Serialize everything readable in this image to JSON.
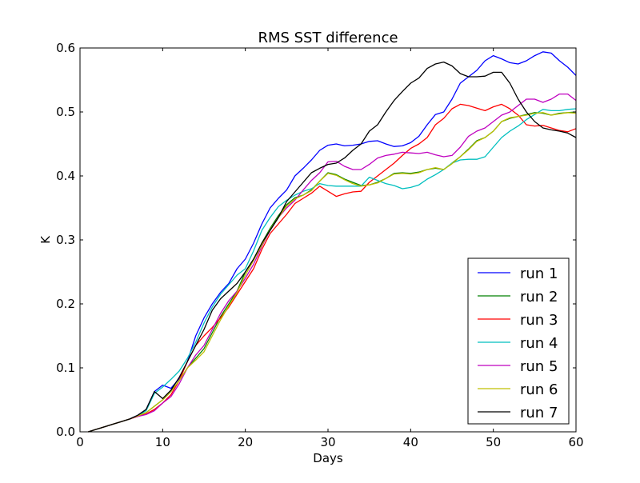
{
  "chart_data": {
    "type": "line",
    "title": "RMS SST difference",
    "xlabel": "Days",
    "ylabel": "K",
    "xlim": [
      0,
      60
    ],
    "ylim": [
      0,
      0.6
    ],
    "xticks": [
      0,
      10,
      20,
      30,
      40,
      50,
      60
    ],
    "yticks": [
      0.0,
      0.1,
      0.2,
      0.3,
      0.4,
      0.5,
      0.6
    ],
    "xtick_labels": [
      "0",
      "10",
      "20",
      "30",
      "40",
      "50",
      "60"
    ],
    "ytick_labels": [
      "0.0",
      "0.1",
      "0.2",
      "0.3",
      "0.4",
      "0.5",
      "0.6"
    ],
    "grid": false,
    "legend_position": "lower-right",
    "x": [
      1,
      2,
      3,
      4,
      5,
      6,
      7,
      8,
      9,
      10,
      11,
      12,
      13,
      14,
      15,
      16,
      17,
      18,
      19,
      20,
      21,
      22,
      23,
      24,
      25,
      26,
      27,
      28,
      29,
      30,
      31,
      32,
      33,
      34,
      35,
      36,
      37,
      38,
      39,
      40,
      41,
      42,
      43,
      44,
      45,
      46,
      47,
      48,
      49,
      50,
      51,
      52,
      53,
      54,
      55,
      56,
      57,
      58,
      59,
      60
    ],
    "series": [
      {
        "name": "run 1",
        "color": "#0000ff",
        "values": [
          0.0,
          0.004,
          0.008,
          0.012,
          0.016,
          0.02,
          0.026,
          0.035,
          0.063,
          0.073,
          0.068,
          0.083,
          0.11,
          0.15,
          0.178,
          0.2,
          0.218,
          0.232,
          0.255,
          0.27,
          0.295,
          0.325,
          0.35,
          0.365,
          0.378,
          0.4,
          0.412,
          0.425,
          0.44,
          0.448,
          0.45,
          0.447,
          0.448,
          0.45,
          0.454,
          0.455,
          0.45,
          0.446,
          0.447,
          0.452,
          0.462,
          0.48,
          0.496,
          0.5,
          0.52,
          0.545,
          0.555,
          0.565,
          0.58,
          0.588,
          0.583,
          0.577,
          0.575,
          0.58,
          0.588,
          0.594,
          0.592,
          0.58,
          0.57,
          0.557
        ]
      },
      {
        "name": "run 2",
        "color": "#008000",
        "values": [
          0.0,
          0.004,
          0.008,
          0.012,
          0.016,
          0.02,
          0.025,
          0.03,
          0.04,
          0.05,
          0.063,
          0.08,
          0.1,
          0.115,
          0.13,
          0.155,
          0.18,
          0.2,
          0.22,
          0.25,
          0.27,
          0.295,
          0.318,
          0.338,
          0.355,
          0.366,
          0.37,
          0.378,
          0.392,
          0.405,
          0.402,
          0.395,
          0.39,
          0.385,
          0.386,
          0.39,
          0.396,
          0.404,
          0.405,
          0.404,
          0.406,
          0.41,
          0.412,
          0.41,
          0.42,
          0.43,
          0.442,
          0.455,
          0.46,
          0.47,
          0.485,
          0.49,
          0.493,
          0.496,
          0.499,
          0.498,
          0.495,
          0.498,
          0.499,
          0.5
        ]
      },
      {
        "name": "run 3",
        "color": "#ff0000",
        "values": [
          0.0,
          0.004,
          0.008,
          0.012,
          0.016,
          0.02,
          0.024,
          0.028,
          0.035,
          0.045,
          0.058,
          0.08,
          0.11,
          0.135,
          0.15,
          0.163,
          0.178,
          0.195,
          0.215,
          0.235,
          0.255,
          0.285,
          0.31,
          0.325,
          0.34,
          0.357,
          0.365,
          0.373,
          0.384,
          0.376,
          0.368,
          0.372,
          0.375,
          0.376,
          0.39,
          0.4,
          0.41,
          0.42,
          0.432,
          0.443,
          0.45,
          0.46,
          0.48,
          0.49,
          0.505,
          0.512,
          0.51,
          0.506,
          0.502,
          0.508,
          0.512,
          0.505,
          0.495,
          0.48,
          0.478,
          0.479,
          0.475,
          0.471,
          0.469,
          0.474
        ]
      },
      {
        "name": "run 4",
        "color": "#00bfbf",
        "values": [
          0.0,
          0.004,
          0.008,
          0.012,
          0.016,
          0.02,
          0.025,
          0.033,
          0.06,
          0.07,
          0.082,
          0.095,
          0.115,
          0.14,
          0.17,
          0.195,
          0.215,
          0.23,
          0.245,
          0.255,
          0.283,
          0.315,
          0.335,
          0.352,
          0.362,
          0.37,
          0.376,
          0.38,
          0.388,
          0.385,
          0.384,
          0.384,
          0.384,
          0.384,
          0.398,
          0.393,
          0.388,
          0.385,
          0.38,
          0.382,
          0.386,
          0.395,
          0.402,
          0.41,
          0.42,
          0.425,
          0.426,
          0.426,
          0.43,
          0.445,
          0.46,
          0.47,
          0.478,
          0.488,
          0.496,
          0.504,
          0.502,
          0.502,
          0.504,
          0.505
        ]
      },
      {
        "name": "run 5",
        "color": "#bf00bf",
        "values": [
          0.0,
          0.004,
          0.008,
          0.012,
          0.016,
          0.02,
          0.024,
          0.027,
          0.033,
          0.045,
          0.055,
          0.075,
          0.1,
          0.12,
          0.135,
          0.16,
          0.185,
          0.205,
          0.22,
          0.24,
          0.262,
          0.29,
          0.315,
          0.335,
          0.35,
          0.362,
          0.378,
          0.393,
          0.405,
          0.422,
          0.423,
          0.415,
          0.41,
          0.41,
          0.418,
          0.428,
          0.432,
          0.434,
          0.437,
          0.436,
          0.435,
          0.437,
          0.433,
          0.43,
          0.432,
          0.445,
          0.462,
          0.47,
          0.475,
          0.485,
          0.495,
          0.5,
          0.51,
          0.52,
          0.52,
          0.515,
          0.52,
          0.528,
          0.528,
          0.518
        ]
      },
      {
        "name": "run 6",
        "color": "#bfbf00",
        "values": [
          0.0,
          0.004,
          0.008,
          0.012,
          0.016,
          0.02,
          0.025,
          0.03,
          0.04,
          0.05,
          0.063,
          0.08,
          0.1,
          0.112,
          0.125,
          0.15,
          0.175,
          0.197,
          0.218,
          0.245,
          0.268,
          0.292,
          0.316,
          0.335,
          0.353,
          0.364,
          0.37,
          0.377,
          0.392,
          0.404,
          0.401,
          0.394,
          0.388,
          0.384,
          0.386,
          0.389,
          0.396,
          0.403,
          0.404,
          0.403,
          0.405,
          0.41,
          0.413,
          0.41,
          0.419,
          0.43,
          0.441,
          0.454,
          0.46,
          0.47,
          0.485,
          0.491,
          0.493,
          0.495,
          0.498,
          0.499,
          0.495,
          0.497,
          0.499,
          0.498
        ]
      },
      {
        "name": "run 7",
        "color": "#000000",
        "values": [
          0.0,
          0.004,
          0.008,
          0.012,
          0.016,
          0.02,
          0.026,
          0.035,
          0.063,
          0.052,
          0.065,
          0.085,
          0.11,
          0.135,
          0.16,
          0.19,
          0.208,
          0.22,
          0.232,
          0.25,
          0.27,
          0.295,
          0.315,
          0.335,
          0.36,
          0.375,
          0.39,
          0.405,
          0.412,
          0.418,
          0.42,
          0.428,
          0.44,
          0.45,
          0.47,
          0.48,
          0.5,
          0.518,
          0.532,
          0.545,
          0.553,
          0.568,
          0.575,
          0.578,
          0.572,
          0.56,
          0.555,
          0.555,
          0.556,
          0.562,
          0.562,
          0.545,
          0.52,
          0.5,
          0.485,
          0.475,
          0.472,
          0.47,
          0.467,
          0.46
        ]
      }
    ]
  }
}
